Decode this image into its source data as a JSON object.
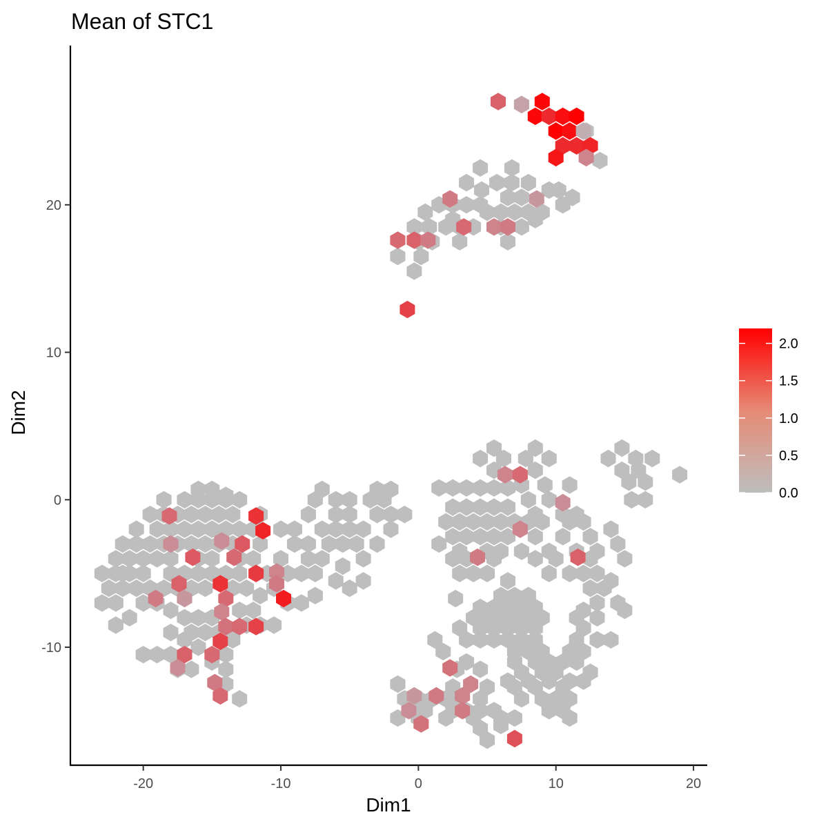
{
  "chart_data": {
    "type": "heatmap",
    "subtype": "hexbin",
    "title": "Mean of STC1",
    "xlabel": "Dim1",
    "ylabel": "Dim2",
    "xlim": [
      -25.3,
      21
    ],
    "ylim": [
      -18,
      30.8
    ],
    "x_ticks": [
      -20,
      -10,
      0,
      10,
      20
    ],
    "y_ticks": [
      -10,
      0,
      10,
      20
    ],
    "x_tick_labels": [
      "-20",
      "-10",
      "0",
      "10",
      "20"
    ],
    "y_tick_labels": [
      "-10",
      "0",
      "10",
      "20"
    ],
    "grid": false,
    "color_scale": {
      "low_color": "#bebebe",
      "high_color": "#ff0000",
      "min": 0.0,
      "max": 2.2,
      "ticks": [
        0.0,
        0.5,
        1.0,
        1.5,
        2.0
      ],
      "tick_labels": [
        "0.0",
        "0.5",
        "1.0",
        "1.5",
        "2.0"
      ],
      "legend_position": "right"
    },
    "hex_size": 1.1,
    "background_bins": [
      [
        6.8,
        21.5,
        8.0,
        21.5,
        9.5,
        21.0,
        4.6,
        21.0,
        5.7,
        21.5,
        4.5,
        20.0,
        5.0,
        19.5,
        6.0,
        19.5,
        7.0,
        19.5,
        8.0,
        19.5,
        9.0,
        19.5,
        10.5,
        20.0,
        3.5,
        20.0,
        2.5,
        20.0,
        1.5,
        20.0,
        0.5,
        19.5,
        -0.3,
        18.5,
        0.8,
        18.5,
        2.0,
        18.5,
        3.0,
        18.5,
        4.0,
        18.5,
        6.0,
        18.5,
        7.5,
        18.5,
        8.5,
        19.0,
        0.0,
        17.5,
        1.0,
        17.5,
        3.0,
        17.5,
        6.5,
        17.5,
        -1.5,
        16.5,
        0.2,
        16.5,
        -0.3,
        15.5,
        3.5,
        21.5,
        10.2,
        21.0,
        11.2,
        20.5,
        2.5,
        19.0,
        6.5,
        20.5,
        7.5,
        20.5,
        4.5,
        22.5,
        6.8,
        22.5,
        7.5,
        26.8,
        12.2,
        25.0,
        13.2,
        23.0
      ],
      [
        5.5,
        3.5,
        8.5,
        3.5,
        14.8,
        3.5,
        4.5,
        2.8,
        6.2,
        2.8,
        7.8,
        2.8,
        9.5,
        2.8,
        13.8,
        2.8,
        15.8,
        2.8,
        17.0,
        2.8,
        5.5,
        2.0,
        8.5,
        2.0,
        14.8,
        2.0,
        16.0,
        2.0,
        19.0,
        1.7,
        7.5,
        1.0,
        9.2,
        1.0,
        11.0,
        1.0,
        15.3,
        1.2,
        16.5,
        1.2,
        1.5,
        0.8,
        2.5,
        0.8,
        3.5,
        0.8,
        4.5,
        0.8,
        5.5,
        0.8,
        6.5,
        0.8,
        8.0,
        0.0,
        9.5,
        0.0,
        15.5,
        0.0,
        16.5,
        0.0,
        -1.0,
        -1.0,
        2.5,
        -0.5,
        3.5,
        -0.5,
        4.5,
        -0.5,
        5.5,
        -0.5,
        6.5,
        -0.5,
        8.5,
        -1.0,
        10.5,
        -1.0,
        11.5,
        -1.0,
        2.0,
        -1.5,
        3.0,
        -1.5,
        4.0,
        -1.5,
        5.0,
        -1.5,
        6.0,
        -1.5,
        7.0,
        -1.5,
        8.0,
        -1.5,
        9.0,
        -1.5,
        11.0,
        -1.5,
        12.0,
        -1.5,
        2.5,
        -2.5,
        3.5,
        -2.5,
        4.5,
        -2.5,
        5.5,
        -2.5,
        6.5,
        -2.5,
        8.5,
        -2.5,
        10.5,
        -2.5,
        12.5,
        -2.5,
        14.0,
        -2.0,
        1.5,
        -3.0,
        3.0,
        -3.5,
        5.0,
        -3.5,
        6.0,
        -3.5,
        7.5,
        -3.5,
        9.5,
        -3.5,
        11.5,
        -3.5,
        13.0,
        -3.5,
        14.5,
        -3.0,
        2.5,
        -4.0,
        3.5,
        -4.0,
        5.5,
        -4.0,
        8.5,
        -4.0,
        10.0,
        -4.0,
        12.5,
        -4.0,
        15.0,
        -4.0,
        3.0,
        -5.0,
        4.0,
        -5.0,
        5.0,
        -5.0,
        9.5,
        -5.0,
        11.0,
        -5.0,
        12.0,
        -5.0,
        13.0,
        -5.0,
        6.5,
        -5.5,
        14.0,
        -5.5,
        12.5,
        -6.0,
        13.5,
        -6.0,
        6.0,
        -6.5,
        7.0,
        -6.5,
        8.0,
        -6.5,
        13.0,
        -7.0,
        14.5,
        -7.0,
        2.7,
        -6.7,
        4.5,
        -7.3,
        5.5,
        -7.3,
        6.5,
        -7.3,
        7.5,
        -7.3,
        8.5,
        -7.3,
        12.0,
        -7.5,
        15.0,
        -7.5,
        4.0,
        -8.0,
        5.0,
        -8.0,
        6.0,
        -8.0,
        7.0,
        -8.0,
        8.0,
        -8.0,
        9.0,
        -8.0,
        11.5,
        -8.0,
        13.0,
        -8.0,
        3.0,
        -8.7,
        4.5,
        -8.7,
        5.5,
        -8.7,
        6.5,
        -8.7,
        7.5,
        -8.7,
        8.5,
        -8.7,
        12.0,
        -8.7,
        3.5,
        -9.5,
        4.5,
        -9.5,
        5.5,
        -9.5,
        6.5,
        -9.5,
        7.5,
        -9.5,
        8.5,
        -9.5,
        11.5,
        -9.5,
        13.0,
        -9.5,
        14.0,
        -9.5,
        1.2,
        -9.5,
        7.0,
        -10.3,
        8.0,
        -10.3,
        9.0,
        -10.3,
        11.0,
        -10.3,
        12.0,
        -10.3,
        1.8,
        -10.3,
        3.5,
        -11.0,
        7.0,
        -11.0,
        8.5,
        -11.0,
        9.5,
        -11.0,
        10.5,
        -11.0,
        11.5,
        -11.0,
        2.8,
        -11.5,
        4.5,
        -11.5,
        7.5,
        -11.7,
        9.0,
        -11.7,
        10.0,
        -11.7,
        12.5,
        -11.7,
        6.5,
        -12.3,
        8.0,
        -12.3,
        9.5,
        -12.3,
        11.0,
        -12.3,
        12.0,
        -12.3,
        -1.5,
        -12.5,
        2.5,
        -12.7,
        5.0,
        -12.7,
        7.0,
        -12.7,
        8.5,
        -12.7,
        10.5,
        -12.7,
        -1.0,
        -13.5,
        0.0,
        -13.5,
        1.0,
        -13.5,
        2.0,
        -13.5,
        3.0,
        -13.5,
        4.5,
        -13.5,
        7.5,
        -13.5,
        9.0,
        -13.5,
        10.0,
        -13.5,
        11.0,
        -13.5,
        -0.5,
        -14.3,
        0.5,
        -14.3,
        2.5,
        -14.3,
        3.5,
        -14.3,
        4.5,
        -14.3,
        5.5,
        -14.3,
        9.5,
        -14.3,
        10.5,
        -14.3,
        -1.5,
        -14.8,
        0.0,
        -14.8,
        2.0,
        -14.8,
        4.0,
        -14.8,
        6.0,
        -14.8,
        7.0,
        -14.8,
        11.0,
        -14.8,
        4.5,
        -15.5,
        5.0,
        -16.3,
        6.0,
        -15.3
      ],
      [
        -20.0,
        -10.5,
        -22.0,
        -8.5,
        -21.0,
        -8.0,
        -23.0,
        -7.0,
        -22.0,
        -7.0,
        -20.0,
        -7.0,
        -18.0,
        -7.5,
        -17.0,
        -8.0,
        -16.0,
        -8.0,
        -15.0,
        -8.0,
        -13.0,
        -7.5,
        -12.0,
        -7.5,
        -11.5,
        -6.5,
        -22.5,
        -6.0,
        -21.5,
        -6.0,
        -20.5,
        -6.0,
        -19.5,
        -6.0,
        -18.5,
        -6.0,
        -17.5,
        -6.0,
        -16.5,
        -6.0,
        -15.5,
        -6.0,
        -13.5,
        -6.0,
        -12.5,
        -6.0,
        -10.5,
        -6.0,
        -23.0,
        -5.0,
        -22.0,
        -5.0,
        -21.0,
        -5.0,
        -20.0,
        -5.0,
        -18.0,
        -5.0,
        -17.0,
        -5.0,
        -16.0,
        -5.0,
        -15.0,
        -5.0,
        -14.0,
        -5.0,
        -13.0,
        -5.0,
        -11.0,
        -5.0,
        -9.5,
        -5.0,
        -8.5,
        -5.0,
        -7.5,
        -5.0,
        -6.0,
        -5.5,
        -5.0,
        -6.0,
        -22.0,
        -4.0,
        -21.0,
        -4.0,
        -20.0,
        -4.0,
        -19.0,
        -4.0,
        -18.0,
        -4.0,
        -16.0,
        -4.0,
        -15.0,
        -4.0,
        -13.0,
        -4.0,
        -12.0,
        -4.0,
        -10.0,
        -4.0,
        -8.0,
        -4.0,
        -7.0,
        -4.0,
        -5.5,
        -4.5,
        -4.0,
        -4.0,
        -21.5,
        -3.0,
        -20.5,
        -3.0,
        -19.5,
        -3.0,
        -18.5,
        -3.0,
        -17.5,
        -3.0,
        -16.5,
        -3.0,
        -15.5,
        -3.0,
        -14.5,
        -3.0,
        -13.5,
        -3.0,
        -11.5,
        -3.0,
        -9.0,
        -3.0,
        -8.0,
        -3.0,
        -6.5,
        -3.0,
        -5.5,
        -3.0,
        -4.5,
        -3.0,
        -3.0,
        -3.0,
        -20.5,
        -2.0,
        -19.0,
        -2.0,
        -18.0,
        -2.0,
        -17.0,
        -2.0,
        -16.0,
        -2.0,
        -15.0,
        -2.0,
        -14.0,
        -2.0,
        -13.0,
        -2.0,
        -12.0,
        -2.0,
        -10.0,
        -2.0,
        -7.0,
        -2.0,
        -6.0,
        -2.0,
        -5.0,
        -2.0,
        -4.0,
        -2.0,
        -2.0,
        -2.0,
        -19.5,
        -1.0,
        -18.5,
        -1.0,
        -17.5,
        -1.0,
        -16.5,
        -1.0,
        -15.5,
        -1.0,
        -14.5,
        -1.0,
        -13.5,
        -1.0,
        -11.5,
        -1.0,
        -8.0,
        -1.0,
        -6.0,
        -1.0,
        -5.0,
        -1.0,
        -3.0,
        -1.0,
        -2.0,
        -1.0,
        -18.5,
        0.0,
        -17.0,
        0.0,
        -16.0,
        0.0,
        -15.0,
        0.0,
        -14.0,
        0.0,
        -13.0,
        0.0,
        -7.5,
        0.0,
        -6.0,
        0.0,
        -5.0,
        0.0,
        -3.5,
        0.0,
        -2.5,
        0.0,
        -16.0,
        0.7,
        -15.0,
        0.7,
        -7.0,
        0.7,
        -3.0,
        0.7,
        -2.0,
        0.7,
        -14.0,
        0.3,
        -11.5,
        -2.0,
        -9.0,
        -2.0,
        -21.5,
        -5.0,
        -19.0,
        -7.0,
        -16.5,
        -9.0,
        -15.5,
        -9.0,
        -14.5,
        -9.0,
        -13.5,
        -9.5,
        -17.0,
        -9.5,
        -18.0,
        -9.0,
        -16.0,
        -10.0,
        -15.0,
        -11.0,
        -16.5,
        -11.5,
        -17.5,
        -11.5,
        -14.0,
        -11.5,
        -14.0,
        -12.5,
        -13.0,
        -13.5,
        -14.0,
        -10.5,
        -18.0,
        -10.5,
        -19.0,
        -10.5,
        -17.0,
        -10.5,
        -11.5,
        -8.5,
        -10.5,
        -8.5,
        -12.5,
        -8.5,
        -9.5,
        -7.0,
        -8.5,
        -7.0,
        -7.5,
        -6.5,
        -4.0,
        -5.5
      ]
    ],
    "colored_bins": [
      [
        5.8,
        27.0,
        0.9
      ],
      [
        7.5,
        26.8,
        0.2
      ],
      [
        9.0,
        27.0,
        2.1
      ],
      [
        8.5,
        26.0,
        2.1
      ],
      [
        9.5,
        26.0,
        1.6
      ],
      [
        10.5,
        26.0,
        2.0
      ],
      [
        11.5,
        26.0,
        2.2
      ],
      [
        10.0,
        25.0,
        2.2
      ],
      [
        11.0,
        25.0,
        2.0
      ],
      [
        12.0,
        25.0,
        0.1
      ],
      [
        10.5,
        24.0,
        1.6
      ],
      [
        11.5,
        24.0,
        1.6
      ],
      [
        12.5,
        24.0,
        1.7
      ],
      [
        10.0,
        23.2,
        1.9
      ],
      [
        12.2,
        23.2,
        0.5
      ],
      [
        2.3,
        20.4,
        0.6
      ],
      [
        8.6,
        20.4,
        0.3
      ],
      [
        3.3,
        18.5,
        0.8
      ],
      [
        5.5,
        18.5,
        0.5
      ],
      [
        6.5,
        18.5,
        0.6
      ],
      [
        -1.5,
        17.6,
        0.8
      ],
      [
        -0.3,
        17.6,
        0.9
      ],
      [
        0.7,
        17.6,
        0.6
      ],
      [
        -0.8,
        12.9,
        1.3
      ],
      [
        6.3,
        1.7,
        0.5
      ],
      [
        7.4,
        1.7,
        0.8
      ],
      [
        10.5,
        -0.2,
        0.4
      ],
      [
        7.4,
        -2.0,
        0.5
      ],
      [
        4.3,
        -3.9,
        0.6
      ],
      [
        11.6,
        -3.9,
        0.9
      ],
      [
        2.3,
        -11.4,
        0.7
      ],
      [
        3.8,
        -12.5,
        0.5
      ],
      [
        1.3,
        -13.3,
        0.6
      ],
      [
        -0.3,
        -13.3,
        0.3
      ],
      [
        -0.7,
        -14.3,
        0.4
      ],
      [
        3.2,
        -13.3,
        0.5
      ],
      [
        3.2,
        -14.3,
        0.6
      ],
      [
        0.2,
        -15.2,
        0.7
      ],
      [
        7.0,
        -16.2,
        1.1
      ],
      [
        -18.1,
        -1.1,
        0.8
      ],
      [
        -11.8,
        -1.1,
        1.5
      ],
      [
        -11.3,
        -2.1,
        1.7
      ],
      [
        -14.3,
        -2.8,
        0.4
      ],
      [
        -12.8,
        -3.0,
        1.0
      ],
      [
        -18.0,
        -3.0,
        0.4
      ],
      [
        -16.4,
        -3.9,
        1.0
      ],
      [
        -13.4,
        -3.9,
        0.8
      ],
      [
        -11.8,
        -5.0,
        1.4
      ],
      [
        -10.3,
        -4.9,
        0.5
      ],
      [
        -17.4,
        -5.7,
        0.9
      ],
      [
        -14.4,
        -5.7,
        1.5
      ],
      [
        -10.3,
        -5.7,
        0.6
      ],
      [
        -19.1,
        -6.7,
        0.6
      ],
      [
        -17.0,
        -6.7,
        0.3
      ],
      [
        -14.0,
        -6.7,
        0.8
      ],
      [
        -9.8,
        -6.7,
        1.8
      ],
      [
        -14.3,
        -7.6,
        0.5
      ],
      [
        -14.0,
        -8.6,
        0.7
      ],
      [
        -13.0,
        -8.6,
        0.8
      ],
      [
        -11.8,
        -8.6,
        1.3
      ],
      [
        -14.4,
        -9.6,
        1.3
      ],
      [
        -17.0,
        -10.5,
        0.9
      ],
      [
        -15.0,
        -10.5,
        0.8
      ],
      [
        -17.5,
        -11.4,
        0.4
      ],
      [
        -14.8,
        -12.4,
        0.6
      ],
      [
        -14.4,
        -13.3,
        0.8
      ]
    ]
  }
}
